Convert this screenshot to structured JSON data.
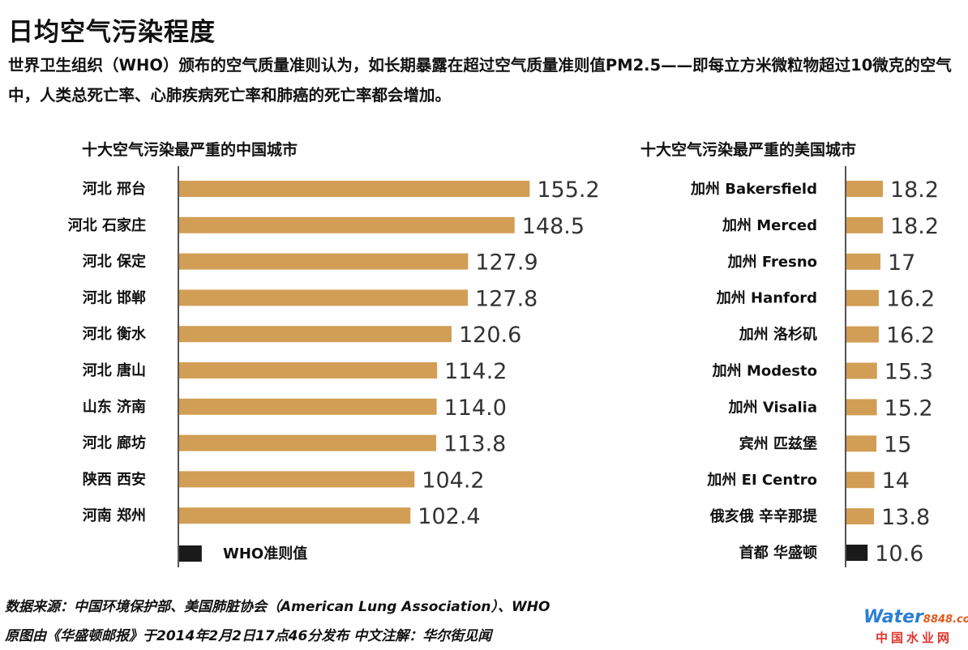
{
  "title": "日均空气污染程度",
  "intro": "世界卫生组织（WHO）颁布的空气质量准则认为，如长期暴露在超过空气质量准则值PM2.5——即每立方米微粒物超过10微克的空气中，人类总死亡率、心肺疾病死亡率和肺癌的死亡率都会增加。",
  "colors": {
    "bar": "#D29E55",
    "who_bar": "#1a1a1a",
    "axis": "#555555"
  },
  "chart_data": [
    {
      "type": "bar",
      "orientation": "horizontal",
      "title": "十大空气污染最严重的中国城市",
      "categories": [
        "河北 邢台",
        "河北 石家庄",
        "河北 保定",
        "河北 邯郸",
        "河北 衡水",
        "河北 唐山",
        "山东 济南",
        "河北 廊坊",
        "陕西 西安",
        "河南 郑州"
      ],
      "values": [
        155.2,
        148.5,
        127.9,
        127.8,
        120.6,
        114.2,
        114.0,
        113.8,
        104.2,
        102.4
      ],
      "value_labels": [
        "155.2",
        "148.5",
        "127.9",
        "127.8",
        "120.6",
        "114.2",
        "114.0",
        "113.8",
        "104.2",
        "102.4"
      ],
      "reference": {
        "label": "WHO准则值",
        "value": 10
      },
      "xlim": [
        0,
        190
      ]
    },
    {
      "type": "bar",
      "orientation": "horizontal",
      "title": "十大空气污染最严重的美国城市",
      "categories": [
        "加州 Bakersfield",
        "加州 Merced",
        "加州 Fresno",
        "加州 Hanford",
        "加州 洛杉矶",
        "加州 Modesto",
        "加州 Visalia",
        "宾州 匹兹堡",
        "加州 EI Centro",
        "俄亥俄 辛辛那提",
        "首都 华盛顿"
      ],
      "values": [
        18.2,
        18.2,
        17,
        16.2,
        16.2,
        15.3,
        15.2,
        15,
        14,
        13.8,
        10.6
      ],
      "value_labels": [
        "18.2",
        "18.2",
        "17",
        "16.2",
        "16.2",
        "15.3",
        "15.2",
        "15",
        "14",
        "13.8",
        "10.6"
      ],
      "highlight_last": true,
      "xlim": [
        0,
        30
      ]
    }
  ],
  "footer": {
    "source": "数据来源：中国环境保护部、美国肺脏协会（American Lung Association）、WHO",
    "credit": "原图由《华盛顿邮报》于2014年2月2日17点46分发布  中文注解：华尔街见闻"
  },
  "logo": {
    "top": "Water",
    "num": "8848",
    "suffix": ".com",
    "bottom": "中国水业网"
  }
}
